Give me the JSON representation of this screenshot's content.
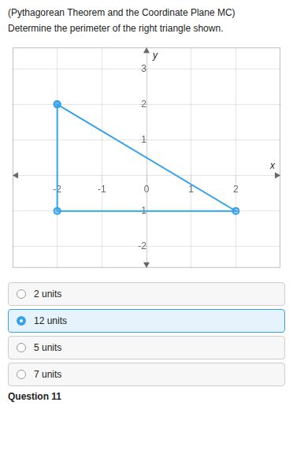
{
  "chart_data": {
    "type": "line",
    "title": "(Pythagorean Theorem and the Coordinate Plane MC)",
    "subtitle": "Determine the perimeter of the right triangle shown.",
    "xlabel": "x",
    "ylabel": "y",
    "x": [
      -2,
      -2,
      2,
      -2
    ],
    "values": [
      2,
      -1,
      -1,
      2
    ],
    "marker": "circle",
    "xlim": [
      -3.0,
      3.0
    ],
    "ylim": [
      -2.6,
      3.6
    ],
    "xticks": [
      -2,
      -1,
      0,
      1,
      2
    ],
    "yticks": [
      -2,
      -1,
      1,
      2,
      3
    ],
    "grid": true,
    "annotations": [
      {
        "text": "2 units",
        "kind": "choice"
      },
      {
        "text": "12 units",
        "kind": "choice",
        "selected": true
      },
      {
        "text": "5 units",
        "kind": "choice"
      },
      {
        "text": "7 units",
        "kind": "choice"
      },
      {
        "text": "Question 11",
        "kind": "label"
      }
    ]
  }
}
